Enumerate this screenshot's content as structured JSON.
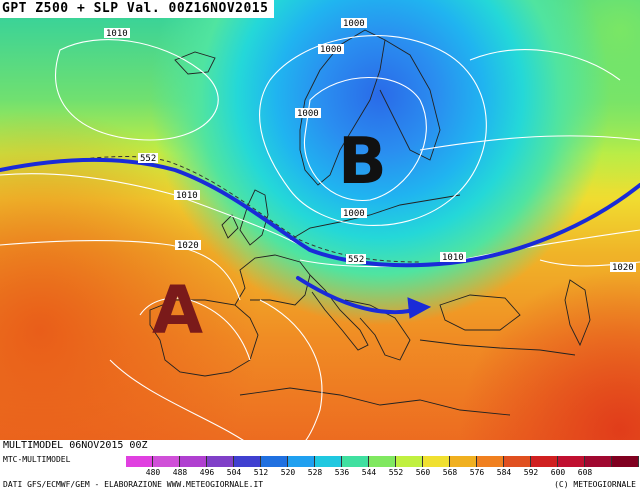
{
  "title": "GPT Z500 + SLP Val. 00Z16NOV2015",
  "run_label": "MULTIMODEL 06NOV2015 00Z",
  "model_label": "MTC-MULTIMODEL",
  "credits": "DATI GFS/ECMWF/GEM - ELABORAZIONE WWW.METEOGIORNALE.IT",
  "copyright": "(C) METEOGIORNALE",
  "map_labels": {
    "isobar_1010_nw": "1010",
    "isobar_1000_north": "1000",
    "isobar_1000_scand": "1000",
    "isobar_1000_south": "1000",
    "isobar_1010_west": "1010",
    "isobar_1020_west": "1020",
    "isobar_1010_east": "1010",
    "isobar_1020_east": "1020",
    "geopot_552_west": "552",
    "geopot_552_center": "552",
    "low_pressure": "B",
    "high_pressure": "A"
  },
  "colorbar": {
    "values": [
      "480",
      "488",
      "496",
      "504",
      "512",
      "520",
      "528",
      "536",
      "544",
      "552",
      "560",
      "568",
      "576",
      "584",
      "592",
      "600",
      "608"
    ],
    "colors": [
      "#e040e0",
      "#d050d8",
      "#b040d0",
      "#8040c8",
      "#4040d0",
      "#2070e0",
      "#20a0f0",
      "#20c8e0",
      "#40e0a0",
      "#80e860",
      "#c0f040",
      "#f0e030",
      "#f0b020",
      "#f08020",
      "#e05020",
      "#d02020",
      "#c01030",
      "#a00830",
      "#800020"
    ]
  },
  "colors": {
    "jet_stream": "#1a2bd8",
    "high_letter": "#7a1a1a",
    "low_letter": "#111111",
    "isobar": "#ffffff",
    "coastline": "#222222"
  }
}
